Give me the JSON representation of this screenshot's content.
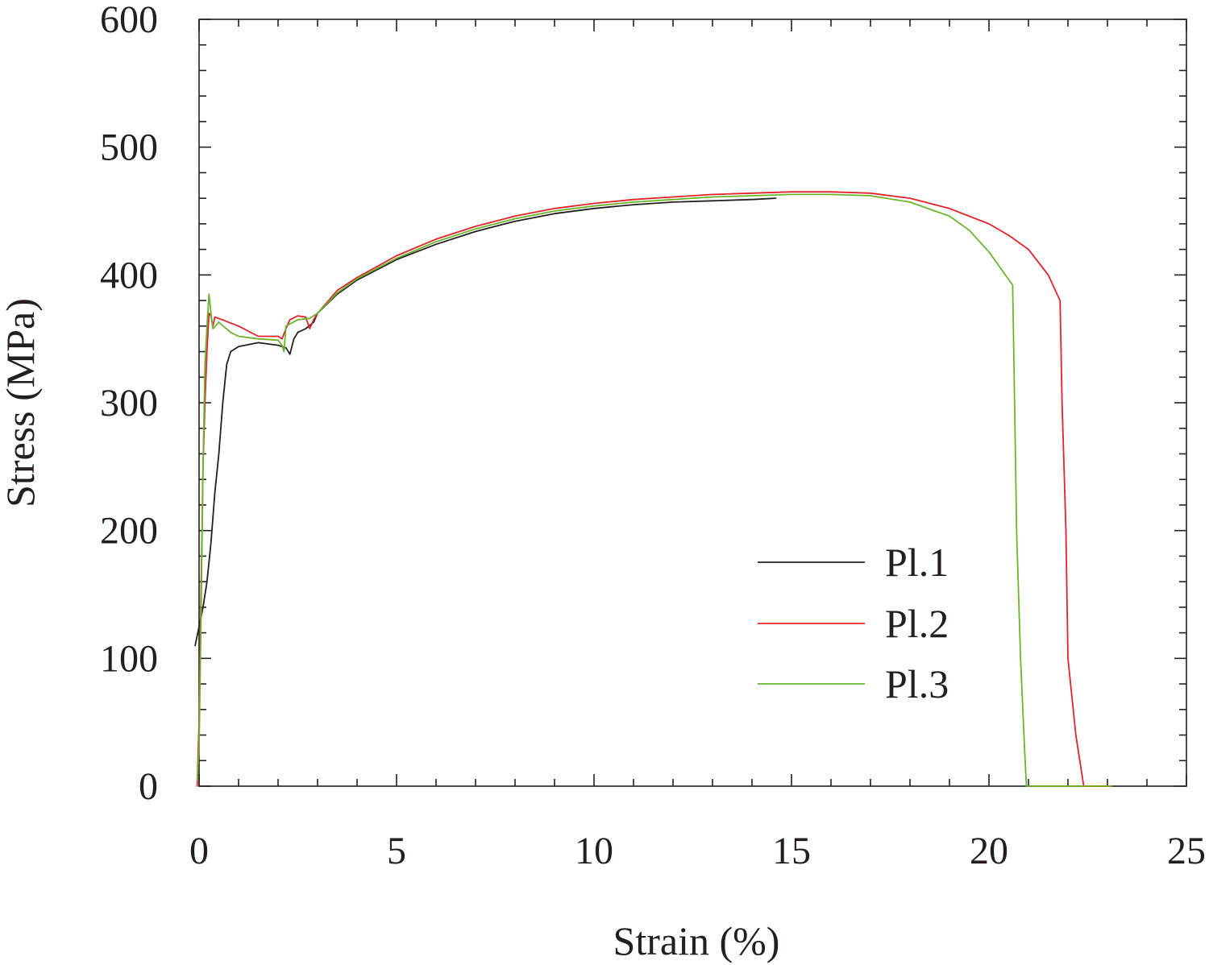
{
  "chart_data": {
    "type": "line",
    "xlabel": "Strain (%)",
    "ylabel": "Stress (MPa)",
    "xlim": [
      0,
      25
    ],
    "ylim": [
      0,
      600
    ],
    "x_ticks": [
      "0",
      "5",
      "10",
      "15",
      "20",
      "25"
    ],
    "y_ticks": [
      "0",
      "100",
      "200",
      "300",
      "400",
      "500",
      "600"
    ],
    "legend_position": "lower-right",
    "series": [
      {
        "name": "Pl.1",
        "color": "#231f20",
        "points": [
          [
            -0.1,
            110
          ],
          [
            0,
            125
          ],
          [
            0.1,
            140
          ],
          [
            0.2,
            160
          ],
          [
            0.3,
            190
          ],
          [
            0.4,
            230
          ],
          [
            0.5,
            260
          ],
          [
            0.6,
            300
          ],
          [
            0.7,
            330
          ],
          [
            0.8,
            340
          ],
          [
            1.0,
            344
          ],
          [
            1.5,
            347
          ],
          [
            2.0,
            345
          ],
          [
            2.2,
            343
          ],
          [
            2.3,
            338
          ],
          [
            2.4,
            350
          ],
          [
            2.5,
            355
          ],
          [
            2.7,
            358
          ],
          [
            2.9,
            363
          ],
          [
            3.0,
            370
          ],
          [
            3.5,
            385
          ],
          [
            4,
            396
          ],
          [
            5,
            412
          ],
          [
            6,
            424
          ],
          [
            7,
            434
          ],
          [
            8,
            442
          ],
          [
            9,
            448
          ],
          [
            10,
            452
          ],
          [
            11,
            455
          ],
          [
            12,
            457
          ],
          [
            13,
            458
          ],
          [
            14,
            459
          ],
          [
            14.6,
            460
          ]
        ]
      },
      {
        "name": "Pl.2",
        "color": "#e0242b",
        "points": [
          [
            -0.05,
            0
          ],
          [
            0,
            50
          ],
          [
            0.05,
            150
          ],
          [
            0.1,
            250
          ],
          [
            0.15,
            300
          ],
          [
            0.2,
            340
          ],
          [
            0.25,
            370
          ],
          [
            0.3,
            368
          ],
          [
            0.35,
            360
          ],
          [
            0.4,
            367
          ],
          [
            0.5,
            366
          ],
          [
            1.0,
            360
          ],
          [
            1.5,
            352
          ],
          [
            2.0,
            352
          ],
          [
            2.1,
            350
          ],
          [
            2.2,
            358
          ],
          [
            2.3,
            365
          ],
          [
            2.5,
            368
          ],
          [
            2.7,
            367
          ],
          [
            2.8,
            358
          ],
          [
            2.9,
            365
          ],
          [
            3.0,
            370
          ],
          [
            3.5,
            388
          ],
          [
            4,
            398
          ],
          [
            5,
            415
          ],
          [
            6,
            428
          ],
          [
            7,
            438
          ],
          [
            8,
            446
          ],
          [
            9,
            452
          ],
          [
            10,
            456
          ],
          [
            11,
            459
          ],
          [
            12,
            461
          ],
          [
            13,
            463
          ],
          [
            14,
            464
          ],
          [
            15,
            465
          ],
          [
            16,
            465
          ],
          [
            17,
            464
          ],
          [
            18,
            460
          ],
          [
            19,
            452
          ],
          [
            20,
            440
          ],
          [
            20.5,
            431
          ],
          [
            21,
            420
          ],
          [
            21.5,
            400
          ],
          [
            21.8,
            380
          ],
          [
            21.85,
            300
          ],
          [
            21.95,
            200
          ],
          [
            22.0,
            100
          ],
          [
            22.2,
            40
          ],
          [
            22.4,
            0
          ],
          [
            23.1,
            0
          ]
        ]
      },
      {
        "name": "Pl.3",
        "color": "#6ab42d",
        "points": [
          [
            -0.05,
            5
          ],
          [
            0,
            30
          ],
          [
            0.05,
            130
          ],
          [
            0.1,
            250
          ],
          [
            0.15,
            330
          ],
          [
            0.2,
            360
          ],
          [
            0.25,
            385
          ],
          [
            0.3,
            370
          ],
          [
            0.35,
            358
          ],
          [
            0.5,
            363
          ],
          [
            0.8,
            355
          ],
          [
            1.0,
            352
          ],
          [
            1.5,
            350
          ],
          [
            2.0,
            349
          ],
          [
            2.1,
            345
          ],
          [
            2.15,
            340
          ],
          [
            2.2,
            360
          ],
          [
            2.5,
            365
          ],
          [
            2.8,
            366
          ],
          [
            3.0,
            370
          ],
          [
            3.5,
            386
          ],
          [
            4,
            397
          ],
          [
            5,
            413
          ],
          [
            6,
            426
          ],
          [
            7,
            436
          ],
          [
            8,
            444
          ],
          [
            9,
            450
          ],
          [
            10,
            454
          ],
          [
            11,
            457
          ],
          [
            12,
            459
          ],
          [
            13,
            461
          ],
          [
            14,
            462
          ],
          [
            15,
            463
          ],
          [
            16,
            463
          ],
          [
            17,
            462
          ],
          [
            18,
            457
          ],
          [
            19,
            446
          ],
          [
            19.5,
            435
          ],
          [
            20,
            418
          ],
          [
            20.3,
            405
          ],
          [
            20.6,
            392
          ],
          [
            20.65,
            300
          ],
          [
            20.7,
            200
          ],
          [
            20.8,
            100
          ],
          [
            20.9,
            30
          ],
          [
            20.95,
            0
          ],
          [
            23.1,
            0
          ]
        ]
      }
    ]
  }
}
